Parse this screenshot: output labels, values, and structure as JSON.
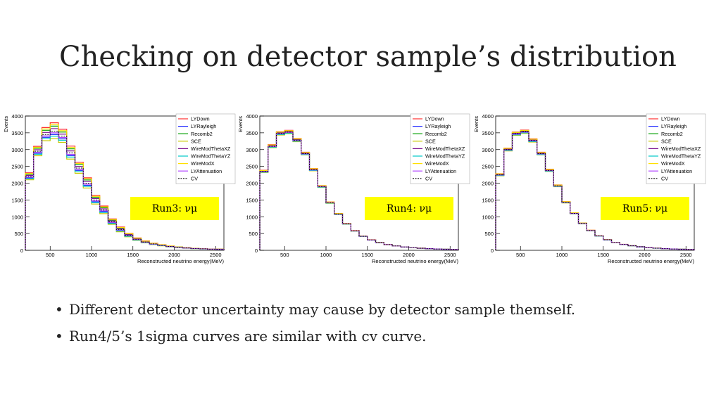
{
  "slide": {
    "title": "Checking on detector sample’s distribution"
  },
  "bullets": [
    "Different detector uncertainty may cause by detector sample themself.",
    "Run4/5’s 1sigma curves are similar with cv curve."
  ],
  "colors": {
    "LYDown": "#ff3030",
    "LYRayleigh": "#1a24ff",
    "Recomb2": "#00a000",
    "SCE": "#c8c800",
    "WireModThetaXZ": "#7a1090",
    "WireModThetaYZ": "#00c8c8",
    "WireModX": "#ffe000",
    "LYAttenuation": "#b040ff",
    "CV": "#111111",
    "label_box": "#ffff00"
  },
  "chart_data": [
    {
      "type": "histogram",
      "label": "Run3: νμ",
      "ylabel": "Events",
      "xlabel": "Reconstructed neutrino energy(MeV)",
      "xlim": [
        200,
        2600
      ],
      "ylim": [
        0,
        4000
      ],
      "x_ticks": [
        500,
        1000,
        1500,
        2000,
        2500
      ],
      "y_ticks": [
        0,
        500,
        1000,
        1500,
        2000,
        2500,
        3000,
        3500,
        4000
      ],
      "legend": [
        "LYDown",
        "LYRayleigh",
        "Recomb2",
        "SCE",
        "WireModThetaXZ",
        "WireModThetaYZ",
        "WireModX",
        "LYAttenuation",
        "CV"
      ],
      "legend_position": "top-right",
      "bin_edges": [
        200,
        300,
        400,
        500,
        600,
        700,
        800,
        900,
        1000,
        1100,
        1200,
        1300,
        1400,
        1500,
        1600,
        1700,
        1800,
        1900,
        2000,
        2100,
        2200,
        2300,
        2400,
        2500,
        2600
      ],
      "cv": [
        2200,
        2950,
        3450,
        3550,
        3400,
        2900,
        2450,
        2000,
        1500,
        1200,
        850,
        620,
        450,
        330,
        250,
        190,
        150,
        115,
        90,
        70,
        55,
        45,
        35,
        30
      ],
      "spread": [
        0.05,
        0.05,
        0.06,
        0.07,
        0.06,
        0.07,
        0.07,
        0.08,
        0.09,
        0.1,
        0.1,
        0.12,
        0.12,
        0.12,
        0.12,
        0.12,
        0.12,
        0.12,
        0.12,
        0.12,
        0.12,
        0.12,
        0.12,
        0.12
      ]
    },
    {
      "type": "histogram",
      "label": "Run4: νμ",
      "ylabel": "Events",
      "xlabel": "Reconstructed neutrino energy(MeV)",
      "xlim": [
        200,
        2600
      ],
      "ylim": [
        0,
        4000
      ],
      "x_ticks": [
        500,
        1000,
        1500,
        2000,
        2500
      ],
      "y_ticks": [
        0,
        500,
        1000,
        1500,
        2000,
        2500,
        3000,
        3500,
        4000
      ],
      "legend": [
        "LYDown",
        "LYRayleigh",
        "Recomb2",
        "SCE",
        "WireModThetaXZ",
        "WireModThetaYZ",
        "WireModX",
        "LYAttenuation",
        "CV"
      ],
      "legend_position": "top-right",
      "bin_edges": [
        200,
        300,
        400,
        500,
        600,
        700,
        800,
        900,
        1000,
        1100,
        1200,
        1300,
        1400,
        1500,
        1600,
        1700,
        1800,
        1900,
        2000,
        2100,
        2200,
        2300,
        2400,
        2500,
        2600
      ],
      "cv": [
        2350,
        3100,
        3480,
        3520,
        3280,
        2880,
        2400,
        1900,
        1420,
        1080,
        790,
        580,
        420,
        310,
        230,
        170,
        130,
        100,
        80,
        62,
        50,
        40,
        32,
        26
      ],
      "spread": [
        0.015,
        0.015,
        0.015,
        0.015,
        0.015,
        0.015,
        0.015,
        0.015,
        0.015,
        0.015,
        0.015,
        0.015,
        0.015,
        0.015,
        0.015,
        0.015,
        0.015,
        0.015,
        0.015,
        0.015,
        0.015,
        0.015,
        0.015,
        0.015
      ]
    },
    {
      "type": "histogram",
      "label": "Run5: νμ",
      "ylabel": "Events",
      "xlabel": "Reconstructed neutrino energy(MeV)",
      "xlim": [
        200,
        2600
      ],
      "ylim": [
        0,
        4000
      ],
      "x_ticks": [
        500,
        1000,
        1500,
        2000,
        2500
      ],
      "y_ticks": [
        0,
        500,
        1000,
        1500,
        2000,
        2500,
        3000,
        3500,
        4000
      ],
      "legend": [
        "LYDown",
        "LYRayleigh",
        "Recomb2",
        "SCE",
        "WireModThetaXZ",
        "WireModThetaYZ",
        "WireModX",
        "LYAttenuation",
        "CV"
      ],
      "legend_position": "top-right",
      "bin_edges": [
        200,
        300,
        400,
        500,
        600,
        700,
        800,
        900,
        1000,
        1100,
        1200,
        1300,
        1400,
        1500,
        1600,
        1700,
        1800,
        1900,
        2000,
        2100,
        2200,
        2300,
        2400,
        2500,
        2600
      ],
      "cv": [
        2250,
        3000,
        3470,
        3530,
        3270,
        2880,
        2380,
        1920,
        1430,
        1100,
        800,
        590,
        430,
        315,
        235,
        175,
        135,
        105,
        82,
        64,
        50,
        40,
        32,
        26
      ],
      "spread": [
        0.015,
        0.015,
        0.015,
        0.015,
        0.015,
        0.015,
        0.015,
        0.015,
        0.015,
        0.015,
        0.015,
        0.015,
        0.015,
        0.015,
        0.015,
        0.015,
        0.015,
        0.015,
        0.015,
        0.015,
        0.015,
        0.015,
        0.015,
        0.015
      ]
    }
  ]
}
